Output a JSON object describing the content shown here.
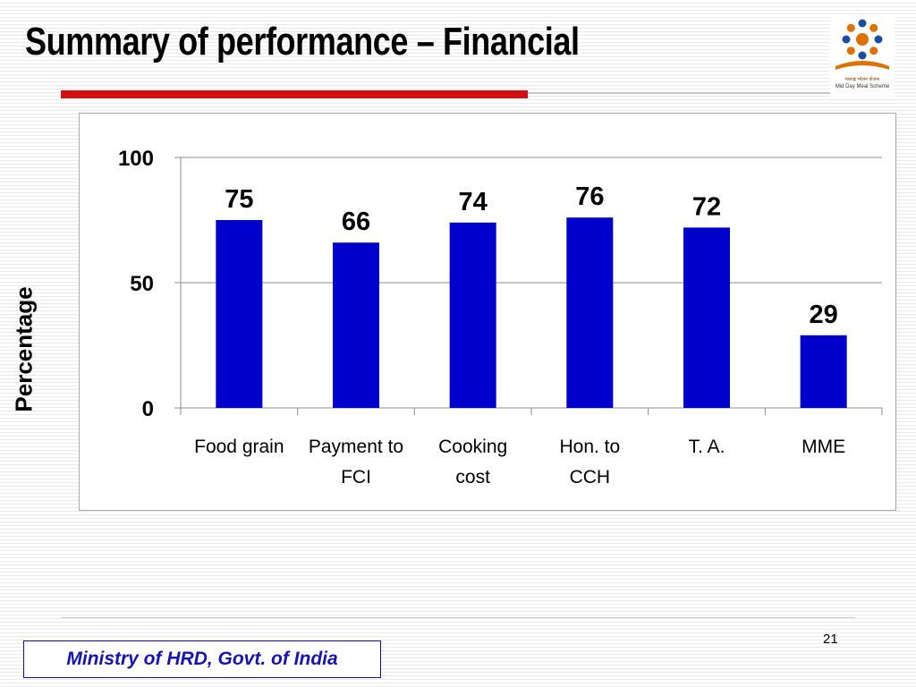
{
  "slide": {
    "title": "Summary of performance – Financial",
    "page_number": "21",
    "footer": "Ministry of HRD, Govt. of India",
    "logo": {
      "icon": "mid-day-meal-logo",
      "line1": "मध्याह्न भोजन योजना",
      "line2": "Mid Day Meal Scheme"
    },
    "accent_color": "#d01010",
    "footer_color": "#1414b4"
  },
  "chart_data": {
    "type": "bar",
    "categories": [
      [
        "Food grain"
      ],
      [
        "Payment to",
        "FCI"
      ],
      [
        "Cooking",
        "cost"
      ],
      [
        "Hon. to",
        "CCH"
      ],
      [
        "T. A."
      ],
      [
        "MME"
      ]
    ],
    "values": [
      75,
      66,
      74,
      76,
      72,
      29
    ],
    "data_labels": [
      "75",
      "66",
      "74",
      "76",
      "72",
      "29"
    ],
    "ylabel": "Percentage",
    "ylim": [
      0,
      100
    ],
    "yticks": [
      0,
      50,
      100
    ],
    "grid": true,
    "legend": "none",
    "bar_color": "#0000cc"
  }
}
